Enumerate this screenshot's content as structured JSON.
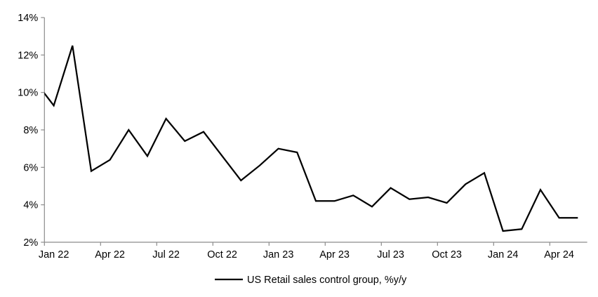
{
  "chart_data": {
    "type": "line",
    "title": "",
    "xlabel": "",
    "ylabel": "",
    "ylim": [
      2,
      14
    ],
    "y_tick_step": 2,
    "y_tick_labels": [
      "2%",
      "4%",
      "6%",
      "8%",
      "10%",
      "12%",
      "14%"
    ],
    "x_tick_labels": [
      "Jan 22",
      "Apr 22",
      "Jul 22",
      "Oct 22",
      "Jan 23",
      "Apr 23",
      "Jul 23",
      "Oct 23",
      "Jan 24",
      "Apr 24"
    ],
    "grid": false,
    "legend_position": "bottom-center",
    "colors": {
      "series_line": "#000000",
      "axis": "#8c8c8c",
      "label_text": "#000000",
      "background": "#ffffff"
    },
    "series": [
      {
        "name": "US Retail sales control group, %y/y",
        "x": [
          "Jan 22",
          "Feb 22",
          "Mar 22",
          "Apr 22",
          "May 22",
          "Jun 22",
          "Jul 22",
          "Aug 22",
          "Sep 22",
          "Oct 22",
          "Nov 22",
          "Dec 22",
          "Jan 23",
          "Feb 23",
          "Mar 23",
          "Apr 23",
          "May 23",
          "Jun 23",
          "Jul 23",
          "Aug 23",
          "Sep 23",
          "Oct 23",
          "Nov 23",
          "Dec 23",
          "Jan 24",
          "Feb 24",
          "Mar 24",
          "Apr 24",
          "May 24"
        ],
        "values": [
          9.3,
          12.5,
          5.8,
          6.4,
          8.0,
          6.6,
          8.6,
          7.4,
          7.9,
          6.6,
          5.3,
          6.1,
          7.0,
          6.8,
          4.2,
          4.2,
          4.5,
          3.9,
          4.9,
          4.3,
          4.4,
          4.1,
          5.1,
          5.7,
          2.6,
          2.7,
          4.8,
          3.3,
          3.3
        ],
        "clipped_lead_in": {
          "x": "Dec 21",
          "value": 10.6
        }
      }
    ]
  },
  "legend": {
    "label": "US Retail sales control group, %y/y"
  }
}
